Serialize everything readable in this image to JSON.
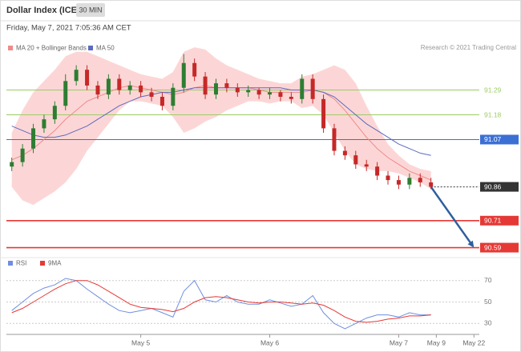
{
  "header": {
    "title": "Dollar Index (ICE)",
    "interval": "30 MIN",
    "timestamp": "Friday, May 7, 2021 7:05:36 AM CET"
  },
  "chart_data": [
    {
      "type": "candlestick",
      "credit": "Research © 2021 Trading Central",
      "x": [
        0,
        2,
        4,
        6,
        8,
        10,
        12,
        14,
        16,
        18,
        20,
        22,
        24,
        26,
        28,
        30,
        32,
        34,
        36,
        38,
        40,
        42,
        44,
        46,
        48,
        50,
        52,
        54,
        56,
        58,
        60,
        62,
        64,
        66,
        68,
        70,
        72,
        74,
        76,
        78
      ],
      "open": [
        90.95,
        90.97,
        91.03,
        91.12,
        91.16,
        91.22,
        91.33,
        91.38,
        91.31,
        91.27,
        91.34,
        91.29,
        91.31,
        91.28,
        91.26,
        91.22,
        91.3,
        91.41,
        91.35,
        91.27,
        91.32,
        91.3,
        91.28,
        91.29,
        91.27,
        91.28,
        91.26,
        91.25,
        91.34,
        91.25,
        91.12,
        91.02,
        91.0,
        90.96,
        90.95,
        90.91,
        90.89,
        90.87,
        90.9,
        90.88
      ],
      "high": [
        90.99,
        91.05,
        91.14,
        91.18,
        91.24,
        91.36,
        91.4,
        91.4,
        91.33,
        91.36,
        91.36,
        91.33,
        91.33,
        91.3,
        91.28,
        91.32,
        91.45,
        91.43,
        91.37,
        91.34,
        91.34,
        91.32,
        91.31,
        91.3,
        91.3,
        91.29,
        91.28,
        91.36,
        91.36,
        91.27,
        91.14,
        91.04,
        91.02,
        90.98,
        90.97,
        90.93,
        90.91,
        90.92,
        90.92,
        90.9
      ],
      "low": [
        90.93,
        90.95,
        91.01,
        91.1,
        91.14,
        91.2,
        91.31,
        91.29,
        91.25,
        91.25,
        91.27,
        91.27,
        91.26,
        91.24,
        91.2,
        91.2,
        91.28,
        91.33,
        91.25,
        91.25,
        91.28,
        91.26,
        91.26,
        91.25,
        91.25,
        91.24,
        91.23,
        91.23,
        91.23,
        91.1,
        91.0,
        90.98,
        90.94,
        90.93,
        90.89,
        90.87,
        90.85,
        90.85,
        90.86,
        90.85
      ],
      "close": [
        90.97,
        91.03,
        91.12,
        91.16,
        91.22,
        91.33,
        91.38,
        91.31,
        91.27,
        91.34,
        91.29,
        91.31,
        91.28,
        91.26,
        91.22,
        91.3,
        91.41,
        91.35,
        91.27,
        91.32,
        91.3,
        91.28,
        91.29,
        91.27,
        91.28,
        91.26,
        91.25,
        91.34,
        91.25,
        91.12,
        91.02,
        91.0,
        90.96,
        90.95,
        90.91,
        90.89,
        90.87,
        90.9,
        90.88,
        90.86
      ],
      "up_color": "#2e7d32",
      "down_color": "#c62828",
      "series": [
        {
          "name": "MA 20 + Bollinger Bands",
          "color": "#f08a8a",
          "band_color": "#fcd6d6",
          "values": [
            90.98,
            91.0,
            91.03,
            91.07,
            91.11,
            91.16,
            91.2,
            91.24,
            91.26,
            91.28,
            91.3,
            91.31,
            91.3,
            91.29,
            91.28,
            91.27,
            91.28,
            91.3,
            91.31,
            91.3,
            91.3,
            91.3,
            91.3,
            91.29,
            91.28,
            91.28,
            91.28,
            91.28,
            91.29,
            91.28,
            91.25,
            91.2,
            91.14,
            91.08,
            91.03,
            90.99,
            90.96,
            90.93,
            90.91,
            90.89
          ],
          "upper": [
            91.1,
            91.2,
            91.28,
            91.33,
            91.38,
            91.44,
            91.46,
            91.46,
            91.44,
            91.42,
            91.4,
            91.38,
            91.36,
            91.35,
            91.34,
            91.37,
            91.46,
            91.48,
            91.47,
            91.43,
            91.4,
            91.38,
            91.36,
            91.34,
            91.33,
            91.32,
            91.32,
            91.35,
            91.36,
            91.38,
            91.4,
            91.38,
            91.32,
            91.22,
            91.13,
            91.05,
            91.0,
            90.96,
            90.94,
            90.93
          ],
          "lower": [
            90.86,
            90.8,
            90.78,
            90.81,
            90.84,
            90.88,
            90.94,
            91.02,
            91.08,
            91.14,
            91.2,
            91.24,
            91.24,
            91.23,
            91.22,
            91.17,
            91.1,
            91.12,
            91.15,
            91.17,
            91.2,
            91.22,
            91.24,
            91.24,
            91.23,
            91.24,
            91.24,
            91.21,
            91.22,
            91.18,
            91.1,
            91.02,
            90.96,
            90.94,
            90.93,
            90.93,
            90.92,
            90.9,
            90.88,
            90.85
          ]
        },
        {
          "name": "MA 50",
          "color": "#5c6bc0",
          "values": [
            91.13,
            91.11,
            91.09,
            91.08,
            91.08,
            91.09,
            91.11,
            91.13,
            91.16,
            91.19,
            91.22,
            91.24,
            91.26,
            91.27,
            91.28,
            91.28,
            91.29,
            91.3,
            91.3,
            91.3,
            91.3,
            91.3,
            91.3,
            91.3,
            91.3,
            91.3,
            91.29,
            91.29,
            91.29,
            91.28,
            91.26,
            91.22,
            91.18,
            91.14,
            91.11,
            91.08,
            91.05,
            91.03,
            91.01,
            91.0
          ]
        }
      ],
      "levels": [
        {
          "value": 91.29,
          "color": "#9ccc65",
          "style": "solid",
          "box": false
        },
        {
          "value": 91.18,
          "color": "#9ccc65",
          "style": "solid",
          "box": false
        },
        {
          "value": 91.07,
          "color": "#3b6fd4",
          "style": "solid",
          "box": true
        },
        {
          "value": 90.86,
          "color": "#333333",
          "style": "dotted",
          "box": true
        },
        {
          "value": 90.71,
          "color": "#e53935",
          "style": "solid",
          "box": true
        },
        {
          "value": 90.59,
          "color": "#e53935",
          "style": "solid",
          "box": true
        }
      ],
      "forecast": {
        "x": [
          78,
          86
        ],
        "values": [
          90.86,
          90.59
        ],
        "color": "#2f5f9e"
      },
      "ylim": [
        90.56,
        91.53
      ],
      "xlim": [
        -1,
        87
      ],
      "xticks": [
        {
          "value": 24,
          "label": "May 5"
        },
        {
          "value": 48,
          "label": "May 6"
        },
        {
          "value": 72,
          "label": "May 7"
        },
        {
          "value": 79,
          "label": "May 9"
        },
        {
          "value": 86,
          "label": "May 22"
        }
      ]
    },
    {
      "type": "line",
      "series": [
        {
          "name": "RSI",
          "color": "#6f8fe0",
          "values": [
            42,
            50,
            58,
            63,
            66,
            72,
            70,
            62,
            55,
            48,
            42,
            40,
            42,
            44,
            40,
            36,
            60,
            70,
            52,
            50,
            56,
            50,
            48,
            48,
            52,
            49,
            46,
            48,
            56,
            40,
            30,
            25,
            30,
            35,
            38,
            38,
            36,
            40,
            38,
            38
          ]
        },
        {
          "name": "9MA",
          "color": "#e53935",
          "values": [
            40,
            44,
            50,
            56,
            62,
            67,
            70,
            70,
            66,
            60,
            54,
            48,
            45,
            44,
            43,
            41,
            44,
            50,
            54,
            55,
            54,
            52,
            50,
            49,
            50,
            50,
            49,
            48,
            49,
            47,
            42,
            36,
            32,
            31,
            32,
            34,
            35,
            37,
            37,
            38
          ]
        }
      ],
      "ylim": [
        22,
        78
      ],
      "yticks": [
        30,
        50,
        70
      ],
      "grid": true
    }
  ]
}
